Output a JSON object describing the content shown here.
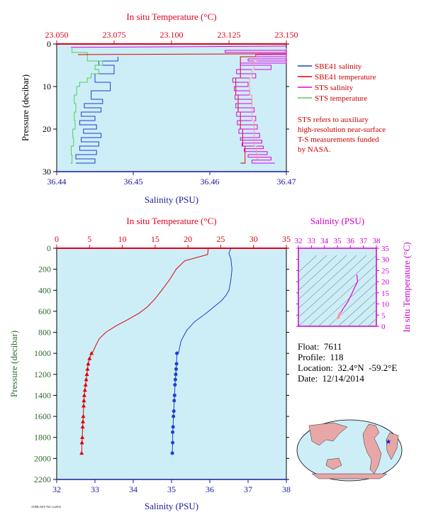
{
  "colors": {
    "plot_bg": "#cdeef7",
    "salinity_axis": "#1a1aa0",
    "temp_axis": "#e0001a",
    "sbe_sal": "#1f3fd0",
    "sbe_temp": "#e00000",
    "sts_sal": "#e000e0",
    "sts_temp": "#55cc55",
    "sts_temp_top": "#ff9999",
    "pressure_label": "#2e6b2e",
    "tsd_axis": "#cc00cc",
    "note": "#cc0000"
  },
  "chart_data": [
    {
      "type": "line",
      "id": "near-surface",
      "top_axis_label": "In situ Temperature (°C)",
      "top_ticks": [
        "23.050",
        "23.075",
        "23.100",
        "23.125",
        "23.150"
      ],
      "top_range": [
        23.05,
        23.15
      ],
      "bottom_axis_label": "Salinity (PSU)",
      "bottom_ticks": [
        "36.44",
        "36.45",
        "36.46",
        "36.47"
      ],
      "bottom_range": [
        36.44,
        36.47
      ],
      "ylabel": "Pressure (decibar)",
      "y_ticks": [
        "0",
        "10",
        "20",
        "30"
      ],
      "ylim": [
        0,
        30
      ],
      "legend": [
        {
          "label": "SBE41 salinity",
          "color": "#1f3fd0"
        },
        {
          "label": "SBE41 temperature",
          "color": "#e00000"
        },
        {
          "label": "STS salinity",
          "color": "#e000e0"
        },
        {
          "label": "STS temperature",
          "color": "#55cc55"
        }
      ],
      "note_lines": [
        "STS refers to auxiliary",
        "high-resolution near-surface",
        "T-S measurements funded",
        "by NASA."
      ],
      "series": [
        {
          "name": "SBE41 salinity",
          "axis": "salinity",
          "x": [
            36.4425,
            36.445,
            36.4425,
            36.4452,
            36.443,
            36.4455,
            36.4432,
            36.4458,
            36.4435,
            36.4452,
            36.443,
            36.445,
            36.4432,
            36.4458,
            36.4436,
            36.446,
            36.4445,
            36.447,
            36.445,
            36.4475,
            36.4455,
            36.448
          ],
          "y": [
            28,
            27,
            26,
            25,
            24,
            23,
            22,
            21,
            20,
            19,
            18,
            17,
            16,
            15,
            14,
            13,
            11,
            9,
            7,
            5,
            4,
            3
          ]
        },
        {
          "name": "SBE41 temperature",
          "axis": "temperature",
          "x": [
            23.13,
            23.132,
            23.131,
            23.13,
            23.129,
            23.128,
            23.13,
            23.15
          ],
          "y": [
            28,
            24,
            20,
            16,
            12,
            8,
            3,
            2
          ]
        },
        {
          "name": "STS salinity",
          "axis": "salinity",
          "x": [
            36.4685,
            36.4655,
            36.468,
            36.465,
            36.4675,
            36.4645,
            36.467,
            36.4642,
            36.4668,
            36.464,
            36.4665,
            36.4638,
            36.4662,
            36.4636,
            36.466,
            36.4635,
            36.4658,
            36.4634,
            36.4655,
            36.4633,
            36.4652,
            36.4632,
            36.465,
            36.463,
            36.466,
            36.4635,
            36.468,
            36.464,
            36.47,
            36.465,
            36.47,
            36.466,
            36.47,
            36.462,
            36.47
          ],
          "y": [
            28,
            27.3,
            26.6,
            26,
            25.3,
            24.6,
            24,
            23.3,
            22.6,
            22,
            21,
            20,
            19,
            18,
            17,
            16,
            15,
            14,
            13,
            12,
            11,
            10,
            9,
            8,
            7,
            6,
            5,
            4.5,
            4,
            3.5,
            3,
            2.5,
            2,
            1.5,
            1
          ]
        },
        {
          "name": "STS temperature (near-surface)",
          "axis": "temperature",
          "color_key": "sts_temp_top",
          "x": [
            23.138,
            23.137,
            23.136,
            23.136,
            23.135,
            23.135,
            23.134,
            23.134,
            23.135,
            23.136,
            23.137
          ],
          "y": [
            27,
            24,
            21,
            18,
            15,
            12,
            10,
            8,
            6,
            4,
            2
          ]
        },
        {
          "name": "STS temperature",
          "axis": "salinity",
          "color_key": "sts_temp",
          "x": [
            36.4418,
            36.442,
            36.4419,
            36.4422,
            36.4421,
            36.4424,
            36.4423,
            36.4425,
            36.4423,
            36.4426,
            36.443,
            36.444,
            36.4445,
            36.4455,
            36.445,
            36.446,
            36.444,
            36.442
          ],
          "y": [
            28,
            26,
            24,
            22,
            20,
            18,
            16,
            14,
            12,
            10,
            9,
            8,
            7,
            6,
            5,
            4,
            2,
            1
          ]
        }
      ]
    },
    {
      "type": "line",
      "id": "full-profile",
      "top_axis_label": "In situ Temperature (°C)",
      "top_ticks": [
        "0",
        "5",
        "10",
        "15",
        "20",
        "25",
        "30",
        "35"
      ],
      "top_range": [
        0,
        35
      ],
      "bottom_axis_label": "Salinity (PSU)",
      "bottom_ticks": [
        "32",
        "33",
        "34",
        "35",
        "36",
        "37",
        "38"
      ],
      "bottom_range": [
        32,
        38
      ],
      "ylabel": "Pressure (decibar)",
      "y_ticks": [
        "0",
        "200",
        "400",
        "600",
        "800",
        "1000",
        "1200",
        "1400",
        "1600",
        "1800",
        "2000",
        "2200"
      ],
      "ylim": [
        0,
        2200
      ],
      "series": [
        {
          "name": "Temperature",
          "axis": "temperature",
          "color_key": "sbe_temp",
          "x": [
            23.1,
            23.0,
            19.5,
            18.2,
            17.2,
            16.0,
            15.0,
            13.8,
            12.5,
            10.8,
            9.0,
            7.5,
            6.5,
            6.0,
            5.7,
            5.4
          ],
          "y": [
            0,
            60,
            120,
            200,
            300,
            400,
            480,
            560,
            620,
            680,
            740,
            800,
            860,
            920,
            960,
            1000
          ]
        },
        {
          "name": "Temperature bottle",
          "axis": "temperature",
          "color_key": "sbe_temp",
          "marker": "triangle",
          "x": [
            5.3,
            5.0,
            4.8,
            4.7,
            4.6,
            4.5,
            4.4,
            4.3,
            4.2,
            4.15,
            4.1,
            4.05,
            4.0,
            3.95,
            3.9,
            3.85,
            3.8
          ],
          "y": [
            1000,
            1050,
            1100,
            1150,
            1200,
            1250,
            1300,
            1350,
            1400,
            1450,
            1500,
            1600,
            1650,
            1700,
            1800,
            1850,
            1950
          ]
        },
        {
          "name": "Salinity",
          "axis": "salinity",
          "color_key": "sbe_sal",
          "x": [
            36.55,
            36.5,
            36.55,
            36.58,
            36.55,
            36.5,
            36.42,
            36.3,
            36.1,
            35.9,
            35.6,
            35.4,
            35.25,
            35.18
          ],
          "y": [
            0,
            50,
            100,
            200,
            300,
            400,
            450,
            500,
            560,
            620,
            700,
            780,
            880,
            1000
          ]
        },
        {
          "name": "Salinity bottle",
          "axis": "salinity",
          "color_key": "sbe_sal",
          "marker": "circle",
          "x": [
            35.14,
            35.13,
            35.12,
            35.11,
            35.1,
            35.09,
            35.08,
            35.07,
            35.06,
            35.05,
            35.04,
            35.03,
            35.03,
            35.02
          ],
          "y": [
            1000,
            1100,
            1150,
            1200,
            1250,
            1300,
            1400,
            1450,
            1550,
            1600,
            1700,
            1750,
            1850,
            1950
          ]
        }
      ]
    },
    {
      "type": "line",
      "id": "ts-diagram",
      "top_axis_label": "Salinity (PSU)",
      "top_ticks": [
        "32",
        "33",
        "34",
        "35",
        "36",
        "37",
        "38"
      ],
      "top_range": [
        32,
        38
      ],
      "right_axis_label": "In situ Temperature (°C)",
      "right_ticks": [
        "0",
        "5",
        "10",
        "15",
        "20",
        "25",
        "30",
        "35"
      ],
      "right_range": [
        0,
        35
      ],
      "series": [
        {
          "name": "T-S curve",
          "color_key": "sts_sal",
          "x": [
            35.2,
            35.4,
            35.8,
            36.1,
            36.3,
            36.55,
            36.5
          ],
          "y": [
            5.5,
            7.5,
            11,
            14.5,
            17,
            20,
            23
          ]
        },
        {
          "name": "T-S deep",
          "color_key": "sts_temp_top",
          "x": [
            35.05,
            35.1,
            35.12,
            35.15,
            35.18
          ],
          "y": [
            3.8,
            4.2,
            4.8,
            5.2,
            5.6
          ]
        }
      ]
    }
  ],
  "info": {
    "float": "Float:  7611",
    "profile": "Profile:  118",
    "location": "Location:  32.4°N  -59.2°E",
    "date": "Date:  12/14/2014"
  },
  "footer": "AOML/SST-7611 (c)2014"
}
